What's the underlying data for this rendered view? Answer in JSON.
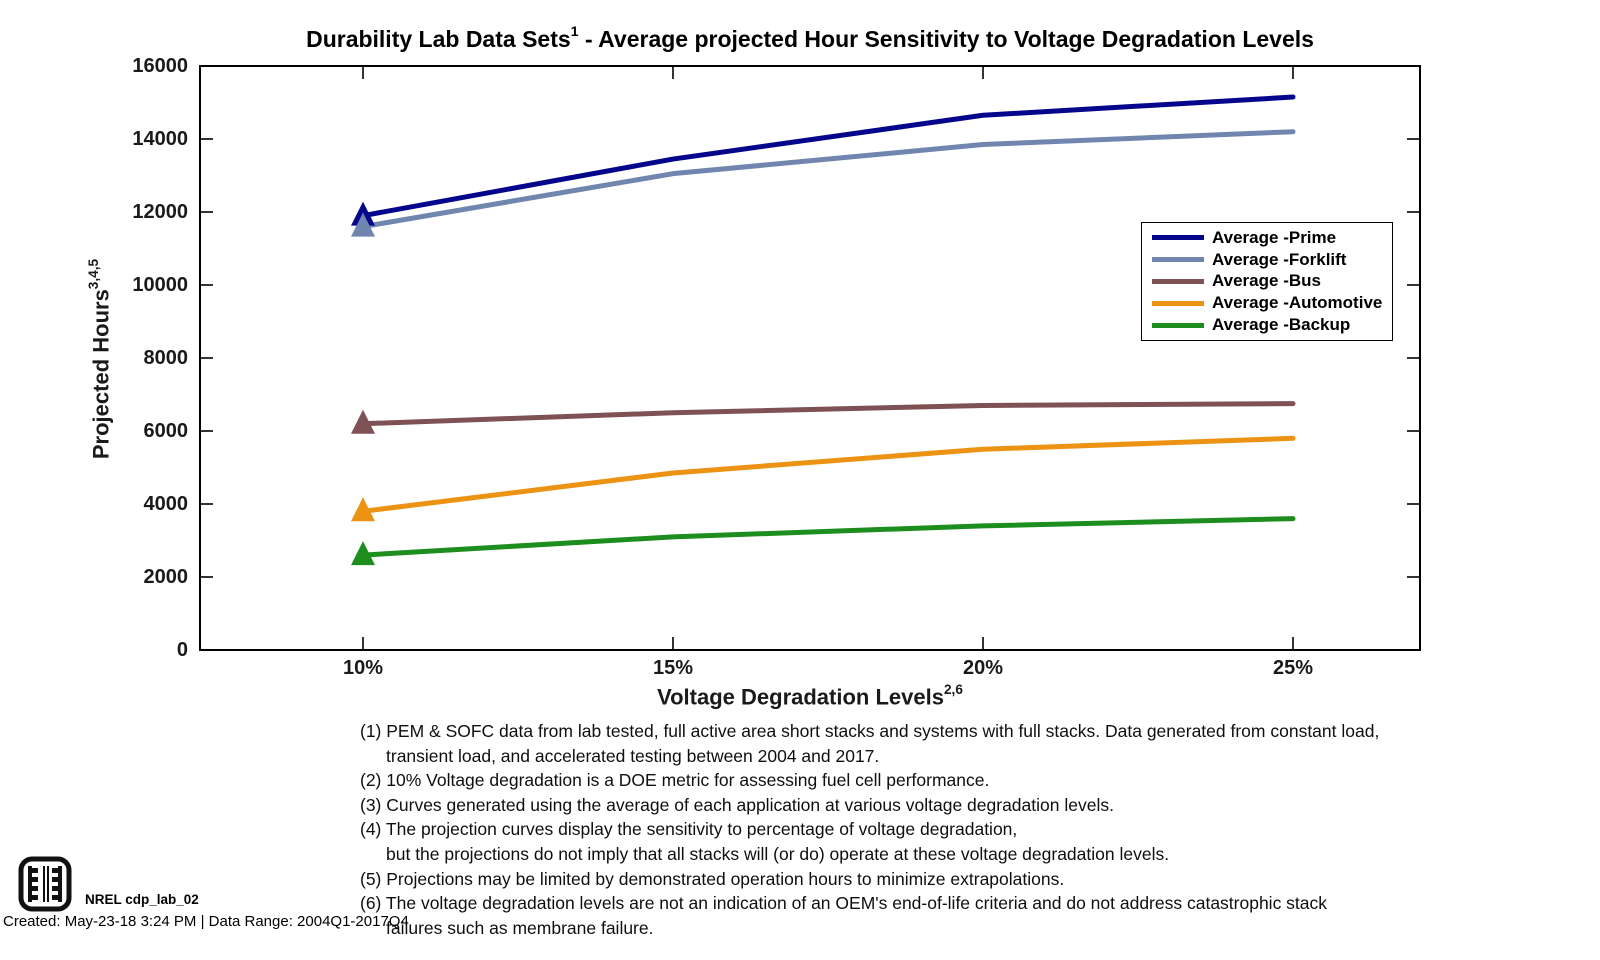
{
  "title": {
    "text": "Durability Lab Data Sets",
    "sup": "1",
    "rest": " - Average projected Hour Sensitivity to Voltage Degradation Levels"
  },
  "axes": {
    "y": {
      "label": "Projected Hours",
      "label_sup": "3,4,5",
      "ticks": [
        "0",
        "2000",
        "4000",
        "6000",
        "8000",
        "10000",
        "12000",
        "14000",
        "16000"
      ]
    },
    "x": {
      "label": "Voltage Degradation Levels",
      "label_sup": "2,6",
      "ticks": [
        "10%",
        "15%",
        "20%",
        "25%"
      ]
    }
  },
  "chart_data": {
    "type": "line",
    "title": "Durability Lab Data Sets(1) - Average projected Hour Sensitivity to Voltage Degradation Levels",
    "xlabel": "Voltage Degradation Levels(2,6)",
    "ylabel": "Projected Hours(3,4,5)",
    "x": [
      10,
      15,
      20,
      25
    ],
    "x_tick_labels": [
      "10%",
      "15%",
      "20%",
      "25%"
    ],
    "ylim": [
      0,
      16000
    ],
    "ytick_step": 2000,
    "grid": false,
    "legend_position": "upper-right-inside",
    "marker": "filled-triangle-at-first-point",
    "series": [
      {
        "name": "Average -Prime",
        "color": "#06068C",
        "values": [
          11900,
          13450,
          14650,
          15150
        ]
      },
      {
        "name": "Average -Forklift",
        "color": "#7086AE",
        "values": [
          11600,
          13050,
          13850,
          14200
        ]
      },
      {
        "name": "Average -Bus",
        "color": "#7E5154",
        "values": [
          6200,
          6500,
          6700,
          6750
        ]
      },
      {
        "name": "Average -Automotive",
        "color": "#EC9313",
        "values": [
          3800,
          4850,
          5500,
          5800
        ]
      },
      {
        "name": "Average -Backup",
        "color": "#1D8E1D",
        "values": [
          2600,
          3100,
          3400,
          3600
        ]
      }
    ]
  },
  "footnotes": [
    {
      "text": "(1) PEM & SOFC data from lab tested, full active area short stacks and systems with full stacks. Data generated from constant load,"
    },
    {
      "text": "transient load, and accelerated testing between 2004 and 2017."
    },
    {
      "text": "(2) 10% Voltage degradation is a DOE metric for assessing fuel cell performance."
    },
    {
      "text": "(3) Curves generated using the average of each application at various voltage degradation levels."
    },
    {
      "text": "(4) The projection curves display the sensitivity to percentage of voltage degradation,"
    },
    {
      "text": "but the projections do not imply that all stacks will (or do) operate at these voltage degradation levels."
    },
    {
      "text": "(5) Projections may be limited by demonstrated operation hours to minimize extrapolations."
    },
    {
      "text": "(6) The voltage degradation levels are not an indication of an OEM's end-of-life criteria and do not address catastrophic stack"
    },
    {
      "text": "failures such as membrane failure."
    }
  ],
  "footer": {
    "logo_label": "NREL cdp_lab_02",
    "created": "Created: May-23-18  3:24 PM | Data Range: 2004Q1-2017Q4"
  }
}
